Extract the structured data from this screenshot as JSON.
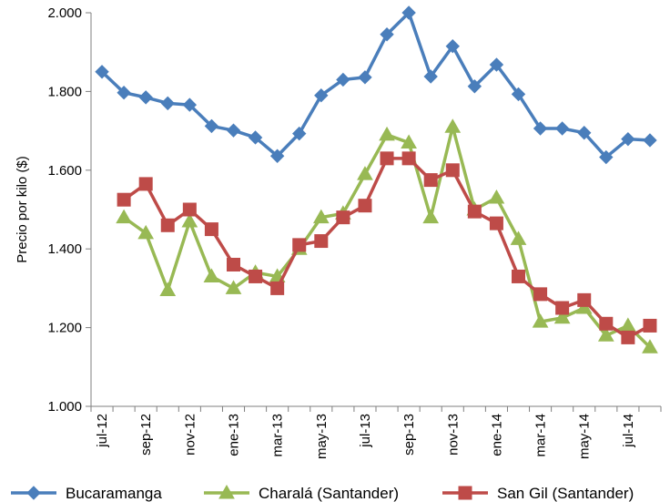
{
  "chart_data": {
    "type": "line",
    "ylabel": "Precio por kilo ($)",
    "ylim": [
      1000,
      2000
    ],
    "yticks": [
      1000,
      1200,
      1400,
      1600,
      1800,
      2000
    ],
    "ytick_labels": [
      "1.000",
      "1.200",
      "1.400",
      "1.600",
      "1.800",
      "2.000"
    ],
    "x": [
      "jul-12",
      "ago-12",
      "sep-12",
      "oct-12",
      "nov-12",
      "dic-12",
      "ene-13",
      "feb-13",
      "mar-13",
      "abr-13",
      "may-13",
      "jun-13",
      "jul-13",
      "ago-13",
      "sep-13",
      "oct-13",
      "nov-13",
      "dic-13",
      "ene-14",
      "feb-14",
      "mar-14",
      "abr-14",
      "may-14",
      "jun-14",
      "jul-14",
      "ago-14"
    ],
    "xtick_labels": [
      "jul-12",
      "sep-12",
      "nov-12",
      "ene-13",
      "mar-13",
      "may-13",
      "jul-13",
      "sep-13",
      "nov-13",
      "ene-14",
      "mar-14",
      "may-14",
      "jul-14"
    ],
    "legend_position": "bottom",
    "series": [
      {
        "name": "Bucaramanga",
        "color": "#4a7ebb",
        "marker": "diamond",
        "values": [
          1850,
          1797,
          1785,
          1770,
          1766,
          1712,
          1701,
          1683,
          1636,
          1693,
          1790,
          1830,
          1836,
          1945,
          2000,
          1838,
          1915,
          1813,
          1868,
          1793,
          1706,
          1706,
          1695,
          1633,
          1679,
          1676
        ]
      },
      {
        "name": "Charalá (Santander)",
        "color": "#98b954",
        "marker": "triangle",
        "values": [
          null,
          1480,
          1440,
          1295,
          1470,
          1330,
          1300,
          1340,
          1330,
          1400,
          1480,
          1490,
          1590,
          1690,
          1670,
          1480,
          1710,
          1500,
          1530,
          1425,
          1215,
          1225,
          1250,
          1180,
          1205,
          1150
        ]
      },
      {
        "name": "San Gil (Santander)",
        "color": "#be4b48",
        "marker": "square",
        "values": [
          null,
          1525,
          1565,
          1460,
          1500,
          1450,
          1360,
          1330,
          1300,
          1410,
          1420,
          1480,
          1510,
          1630,
          1630,
          1575,
          1600,
          1495,
          1465,
          1330,
          1285,
          1250,
          1270,
          1210,
          1175,
          1205
        ]
      }
    ]
  }
}
